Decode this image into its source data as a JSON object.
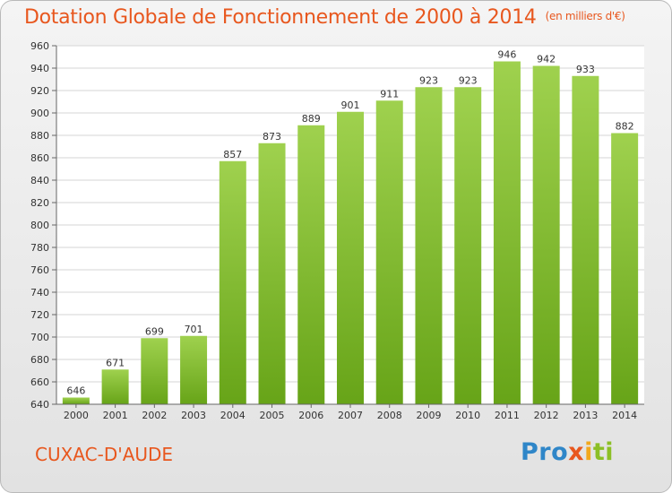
{
  "header": {
    "title": "Dotation Globale de Fonctionnement de 2000 à 2014",
    "unit": "(en milliers d'€)"
  },
  "footer": {
    "commune": "CUXAC-D'AUDE",
    "logo": [
      "Pro",
      "x",
      "i",
      "ti"
    ]
  },
  "chart_data": {
    "type": "bar",
    "title": "Dotation Globale de Fonctionnement de 2000 à 2014",
    "unit": "(en milliers d'€)",
    "categories": [
      "2000",
      "2001",
      "2002",
      "2003",
      "2004",
      "2005",
      "2006",
      "2007",
      "2008",
      "2009",
      "2010",
      "2011",
      "2012",
      "2013",
      "2014"
    ],
    "values": [
      646,
      671,
      699,
      701,
      857,
      873,
      889,
      901,
      911,
      923,
      923,
      946,
      942,
      933,
      882
    ],
    "ylim": [
      640,
      960
    ],
    "yticks": [
      640,
      660,
      680,
      700,
      720,
      740,
      760,
      780,
      800,
      820,
      840,
      860,
      880,
      900,
      920,
      940,
      960
    ],
    "grid": true,
    "bar_color": "#8cc63f"
  }
}
